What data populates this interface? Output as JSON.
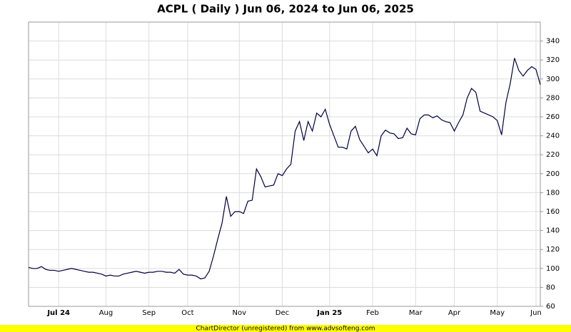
{
  "chart_data": {
    "type": "line",
    "title": "ACPL ( Daily ) Jun 06, 2024 to Jun 06, 2025",
    "categories": [
      null,
      null,
      null,
      null,
      null,
      null,
      null,
      "Jul 24",
      null,
      null,
      null,
      null,
      null,
      null,
      null,
      null,
      null,
      null,
      "Aug",
      null,
      null,
      null,
      null,
      null,
      null,
      null,
      null,
      null,
      "Sep",
      null,
      null,
      null,
      null,
      null,
      null,
      null,
      null,
      "Oct",
      null,
      null,
      null,
      null,
      null,
      null,
      null,
      null,
      null,
      null,
      null,
      "Nov",
      null,
      null,
      null,
      null,
      null,
      null,
      null,
      null,
      null,
      "Dec",
      null,
      null,
      null,
      null,
      null,
      null,
      null,
      null,
      null,
      null,
      "Jan 25",
      null,
      null,
      null,
      null,
      null,
      null,
      null,
      null,
      null,
      "Feb",
      null,
      null,
      null,
      null,
      null,
      null,
      null,
      null,
      null,
      "Mar",
      null,
      null,
      null,
      null,
      null,
      null,
      null,
      null,
      "Apr",
      null,
      null,
      null,
      null,
      null,
      null,
      null,
      null,
      null,
      "May",
      null,
      null,
      null,
      null,
      null,
      null,
      null,
      null,
      "Jun",
      null
    ],
    "values": [
      101,
      100,
      100,
      102,
      99,
      98,
      98,
      97,
      98,
      99,
      100,
      99,
      98,
      97,
      96,
      96,
      95,
      94,
      92,
      93,
      92,
      92,
      94,
      95,
      96,
      97,
      96,
      95,
      96,
      96,
      97,
      97,
      96,
      96,
      95,
      99,
      94,
      93,
      93,
      92,
      89,
      90,
      97,
      113,
      131,
      148,
      176,
      155,
      160,
      160,
      158,
      171,
      172,
      205,
      197,
      186,
      187,
      188,
      200,
      198,
      205,
      210,
      245,
      255,
      235,
      255,
      245,
      264,
      260,
      268,
      252,
      240,
      228,
      228,
      226,
      245,
      250,
      236,
      229,
      222,
      226,
      219,
      240,
      246,
      243,
      242,
      237,
      238,
      248,
      242,
      241,
      258,
      262,
      262,
      259,
      261,
      257,
      255,
      254,
      245,
      254,
      262,
      280,
      290,
      286,
      266,
      264,
      262,
      260,
      256,
      241,
      275,
      295,
      322,
      309,
      303,
      309,
      313,
      310,
      294
    ],
    "color": "#000040",
    "ylim": [
      60,
      360
    ],
    "yticks": [
      60,
      80,
      100,
      120,
      140,
      160,
      180,
      200,
      220,
      240,
      260,
      280,
      300,
      320,
      340
    ],
    "grid": true
  },
  "footer": "ChartDirector (unregistered) from www.advsofteng.com"
}
